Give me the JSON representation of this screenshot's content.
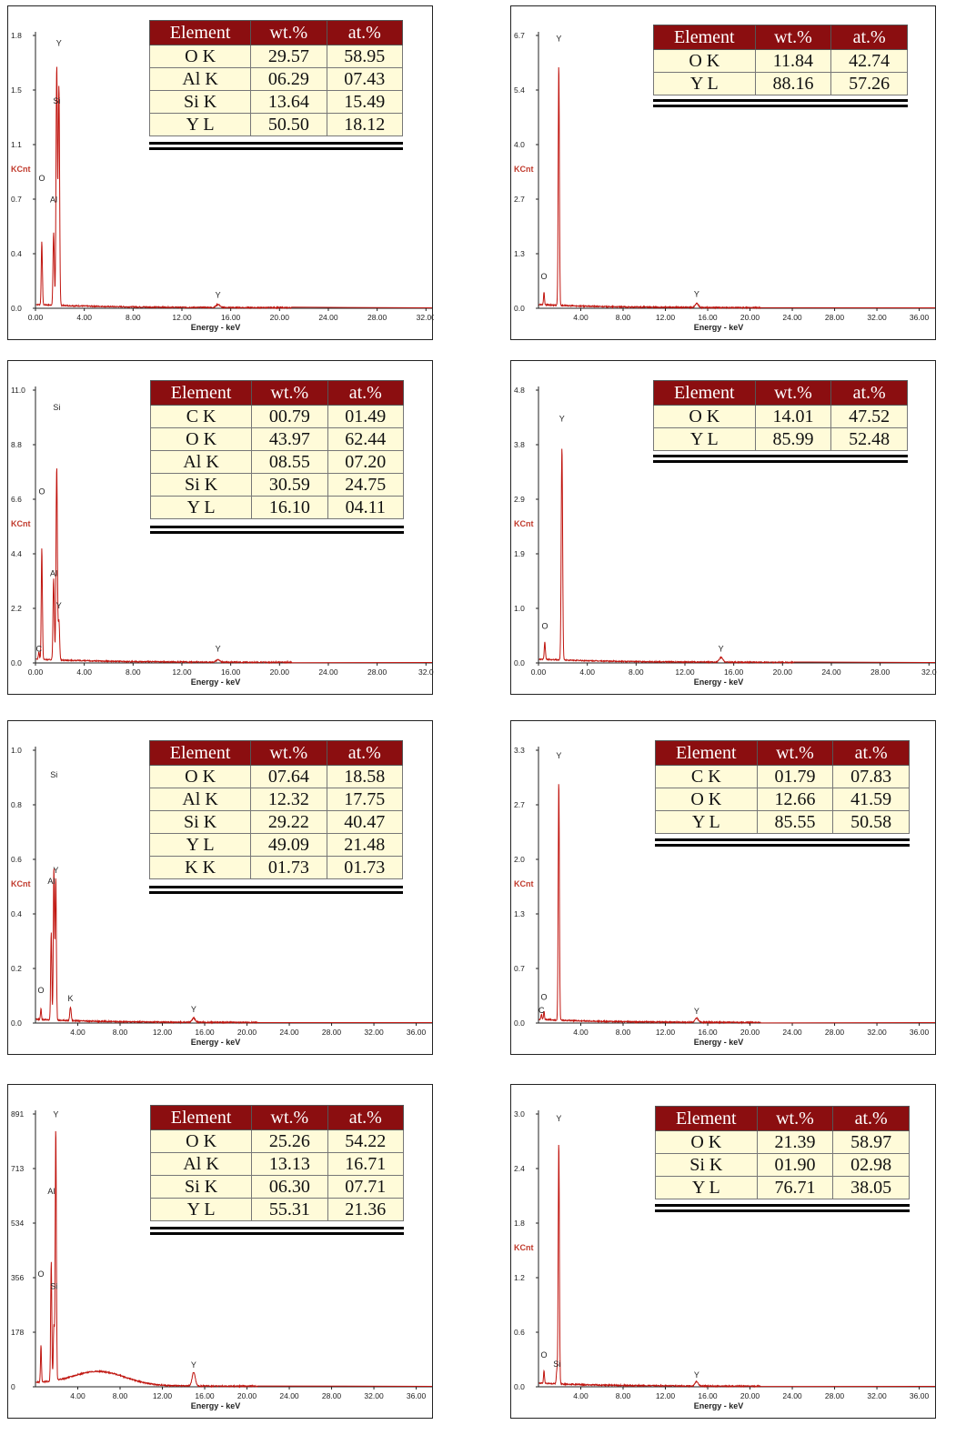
{
  "chart_data": [
    {
      "type": "line",
      "xlabel": "Energy - keV",
      "ylabel": "KCnt",
      "ylim": [
        0,
        1.8
      ],
      "y_ticks": [
        "0.0",
        "0.4",
        "0.7",
        "1.1",
        "1.5",
        "1.8"
      ],
      "x_ticks": [
        "0.00",
        "4.00",
        "8.00",
        "12.00",
        "16.00",
        "20.00",
        "24.00",
        "28.00",
        "32.00"
      ],
      "xlim": [
        0,
        32.5
      ],
      "peaks": [
        [
          0.52,
          0.42
        ],
        [
          1.49,
          0.48
        ],
        [
          1.74,
          1.58
        ],
        [
          1.92,
          1.45
        ],
        [
          14.96,
          0.02
        ]
      ],
      "annotations": [
        {
          "text": "Y",
          "x": 1.92,
          "y": 1.73
        },
        {
          "text": "Si",
          "x": 1.74,
          "y": 1.35
        },
        {
          "text": "O",
          "x": 0.52,
          "y": 0.84
        },
        {
          "text": "Al",
          "x": 1.49,
          "y": 0.7
        },
        {
          "text": "Y",
          "x": 14.96,
          "y": 0.07
        }
      ],
      "composition": {
        "headers": [
          "Element",
          "wt.%",
          "at.%"
        ],
        "rows": [
          [
            "O K",
            "29.57",
            "58.95"
          ],
          [
            "Al K",
            "06.29",
            "07.43"
          ],
          [
            "Si K",
            "13.64",
            "15.49"
          ],
          [
            "Y L",
            "50.50",
            "18.12"
          ]
        ]
      }
    },
    {
      "type": "line",
      "xlabel": "Energy - keV",
      "ylabel": "KCnt",
      "ylim": [
        0,
        6.7
      ],
      "y_ticks": [
        "0.0",
        "1.3",
        "2.7",
        "4.0",
        "5.4",
        "6.7"
      ],
      "x_ticks": [
        "4.00",
        "8.00",
        "12.00",
        "16.00",
        "20.00",
        "24.00",
        "28.00",
        "32.00",
        "36.00"
      ],
      "xlim": [
        0,
        37.5
      ],
      "peaks": [
        [
          0.52,
          0.3
        ],
        [
          1.92,
          5.9
        ],
        [
          14.96,
          0.1
        ]
      ],
      "annotations": [
        {
          "text": "Y",
          "x": 1.92,
          "y": 6.55
        },
        {
          "text": "O",
          "x": 0.52,
          "y": 0.72
        },
        {
          "text": "Y",
          "x": 14.96,
          "y": 0.28
        }
      ],
      "composition": {
        "headers": [
          "Element",
          "wt.%",
          "at.%"
        ],
        "rows": [
          [
            "O K",
            "11.84",
            "42.74"
          ],
          [
            "Y L",
            "88.16",
            "57.26"
          ]
        ]
      }
    },
    {
      "type": "line",
      "xlabel": "Energy - keV",
      "ylabel": "KCnt",
      "ylim": [
        0,
        11.0
      ],
      "y_ticks": [
        "0.0",
        "2.2",
        "4.4",
        "6.6",
        "8.8",
        "11.0"
      ],
      "x_ticks": [
        "0.00",
        "4.00",
        "8.00",
        "12.00",
        "16.00",
        "20.00",
        "24.00",
        "28.00",
        "32.0"
      ],
      "xlim": [
        0,
        32.5
      ],
      "peaks": [
        [
          0.28,
          0.3
        ],
        [
          0.52,
          4.5
        ],
        [
          1.49,
          3.3
        ],
        [
          1.74,
          7.8
        ],
        [
          1.92,
          1.6
        ],
        [
          14.96,
          0.1
        ]
      ],
      "annotations": [
        {
          "text": "Si",
          "x": 1.74,
          "y": 10.2
        },
        {
          "text": "O",
          "x": 0.52,
          "y": 6.8
        },
        {
          "text": "Al",
          "x": 1.49,
          "y": 3.5
        },
        {
          "text": "Y",
          "x": 1.92,
          "y": 2.2
        },
        {
          "text": "C",
          "x": 0.28,
          "y": 0.45
        },
        {
          "text": "Y",
          "x": 14.96,
          "y": 0.45
        }
      ],
      "composition": {
        "headers": [
          "Element",
          "wt.%",
          "at.%"
        ],
        "rows": [
          [
            "C K",
            "00.79",
            "01.49"
          ],
          [
            "O K",
            "43.97",
            "62.44"
          ],
          [
            "Al K",
            "08.55",
            "07.20"
          ],
          [
            "Si K",
            "30.59",
            "24.75"
          ],
          [
            "Y L",
            "16.10",
            "04.11"
          ]
        ]
      }
    },
    {
      "type": "line",
      "xlabel": "Energy - keV",
      "ylabel": "KCnt",
      "ylim": [
        0,
        4.8
      ],
      "y_ticks": [
        "0.0",
        "1.0",
        "1.9",
        "2.9",
        "3.8",
        "4.8"
      ],
      "x_ticks": [
        "0.00",
        "4.00",
        "8.00",
        "12.00",
        "16.00",
        "20.00",
        "24.00",
        "28.00",
        "32.0"
      ],
      "xlim": [
        0,
        32.5
      ],
      "peaks": [
        [
          0.52,
          0.3
        ],
        [
          1.92,
          3.75
        ],
        [
          14.96,
          0.08
        ]
      ],
      "annotations": [
        {
          "text": "Y",
          "x": 1.92,
          "y": 4.25
        },
        {
          "text": "O",
          "x": 0.52,
          "y": 0.6
        },
        {
          "text": "Y",
          "x": 14.96,
          "y": 0.2
        }
      ],
      "composition": {
        "headers": [
          "Element",
          "wt.%",
          "at.%"
        ],
        "rows": [
          [
            "O K",
            "14.01",
            "47.52"
          ],
          [
            "Y L",
            "85.99",
            "52.48"
          ]
        ]
      }
    },
    {
      "type": "line",
      "xlabel": "Energy - keV",
      "ylabel": "KCnt",
      "ylim": [
        0,
        1.0
      ],
      "y_ticks": [
        "0.0",
        "0.2",
        "0.4",
        "0.6",
        "0.8",
        "1.0"
      ],
      "x_ticks": [
        "4.00",
        "8.00",
        "12.00",
        "16.00",
        "20.00",
        "24.00",
        "28.00",
        "32.00",
        "36.00"
      ],
      "xlim": [
        0,
        37.5
      ],
      "peaks": [
        [
          0.52,
          0.04
        ],
        [
          1.49,
          0.32
        ],
        [
          1.74,
          0.56
        ],
        [
          1.92,
          0.52
        ],
        [
          3.31,
          0.05
        ],
        [
          14.96,
          0.015
        ]
      ],
      "annotations": [
        {
          "text": "Si",
          "x": 1.74,
          "y": 0.9
        },
        {
          "text": "Y",
          "x": 1.92,
          "y": 0.55
        },
        {
          "text": "Al",
          "x": 1.49,
          "y": 0.51
        },
        {
          "text": "O",
          "x": 0.52,
          "y": 0.11
        },
        {
          "text": "K",
          "x": 3.31,
          "y": 0.08
        },
        {
          "text": "Y",
          "x": 14.96,
          "y": 0.04
        }
      ],
      "composition": {
        "headers": [
          "Element",
          "wt.%",
          "at.%"
        ],
        "rows": [
          [
            "O K",
            "07.64",
            "18.58"
          ],
          [
            "Al K",
            "12.32",
            "17.75"
          ],
          [
            "Si K",
            "29.22",
            "40.47"
          ],
          [
            "Y L",
            "49.09",
            "21.48"
          ],
          [
            "K K",
            "01.73",
            "01.73"
          ]
        ]
      }
    },
    {
      "type": "line",
      "xlabel": "Energy - keV",
      "ylabel": "KCnt",
      "ylim": [
        0,
        3.3
      ],
      "y_ticks": [
        "0.0",
        "0.7",
        "1.3",
        "2.0",
        "2.7",
        "3.3"
      ],
      "x_ticks": [
        "4.00",
        "8.00",
        "12.00",
        "16.00",
        "20.00",
        "24.00",
        "28.00",
        "32.00",
        "36.00"
      ],
      "xlim": [
        0,
        37.5
      ],
      "peaks": [
        [
          0.28,
          0.06
        ],
        [
          0.52,
          0.1
        ],
        [
          1.92,
          2.88
        ],
        [
          14.96,
          0.05
        ]
      ],
      "annotations": [
        {
          "text": "Y",
          "x": 1.92,
          "y": 3.2
        },
        {
          "text": "O",
          "x": 0.52,
          "y": 0.28
        },
        {
          "text": "C",
          "x": 0.28,
          "y": 0.12
        },
        {
          "text": "Y",
          "x": 14.96,
          "y": 0.11
        }
      ],
      "composition": {
        "headers": [
          "Element",
          "wt.%",
          "at.%"
        ],
        "rows": [
          [
            "C K",
            "01.79",
            "07.83"
          ],
          [
            "O K",
            "12.66",
            "41.59"
          ],
          [
            "Y L",
            "85.55",
            "50.58"
          ]
        ]
      }
    },
    {
      "type": "line",
      "xlabel": "Energy - keV",
      "ylabel": "",
      "ylim": [
        0,
        891
      ],
      "y_ticks": [
        "0",
        "178",
        "356",
        "534",
        "713",
        "891"
      ],
      "x_ticks": [
        "4.00",
        "8.00",
        "12.00",
        "16.00",
        "20.00",
        "24.00",
        "28.00",
        "32.00",
        "36.00"
      ],
      "xlim": [
        0,
        37.5
      ],
      "peaks": [
        [
          0.52,
          120
        ],
        [
          1.49,
          390
        ],
        [
          1.74,
          180
        ],
        [
          1.92,
          820
        ],
        [
          14.96,
          45
        ]
      ],
      "annotations": [
        {
          "text": "Y",
          "x": 1.92,
          "y": 880
        },
        {
          "text": "Al",
          "x": 1.49,
          "y": 630
        },
        {
          "text": "O",
          "x": 0.52,
          "y": 360
        },
        {
          "text": "Si",
          "x": 1.74,
          "y": 320
        },
        {
          "text": "Y",
          "x": 14.96,
          "y": 62
        }
      ],
      "composition": {
        "headers": [
          "Element",
          "wt.%",
          "at.%"
        ],
        "rows": [
          [
            "O K",
            "25.26",
            "54.22"
          ],
          [
            "Al K",
            "13.13",
            "16.71"
          ],
          [
            "Si K",
            "06.30",
            "07.71"
          ],
          [
            "Y L",
            "55.31",
            "21.36"
          ]
        ]
      }
    },
    {
      "type": "line",
      "xlabel": "Energy - keV",
      "ylabel": "KCnt",
      "ylim": [
        0,
        3.0
      ],
      "y_ticks": [
        "0.0",
        "0.6",
        "1.2",
        "1.8",
        "2.4",
        "3.0"
      ],
      "x_ticks": [
        "4.00",
        "8.00",
        "12.00",
        "16.00",
        "20.00",
        "24.00",
        "28.00",
        "32.00",
        "36.00"
      ],
      "xlim": [
        0,
        37.5
      ],
      "peaks": [
        [
          0.52,
          0.14
        ],
        [
          1.74,
          0.15
        ],
        [
          1.92,
          2.65
        ],
        [
          14.96,
          0.05
        ]
      ],
      "annotations": [
        {
          "text": "Y",
          "x": 1.92,
          "y": 2.92
        },
        {
          "text": "O",
          "x": 0.52,
          "y": 0.32
        },
        {
          "text": "Si",
          "x": 1.74,
          "y": 0.22
        },
        {
          "text": "Y",
          "x": 14.96,
          "y": 0.1
        }
      ],
      "composition": {
        "headers": [
          "Element",
          "wt.%",
          "at.%"
        ],
        "rows": [
          [
            "O K",
            "21.39",
            "58.97"
          ],
          [
            "Si K",
            "01.90",
            "02.98"
          ],
          [
            "Y L",
            "76.71",
            "38.05"
          ]
        ]
      }
    }
  ],
  "colors": {
    "spectrum_line": "#c0150f",
    "table_header_bg": "#8b0e10",
    "table_cell_bg": "#fffbd9",
    "ylabel": "#c0392b"
  }
}
